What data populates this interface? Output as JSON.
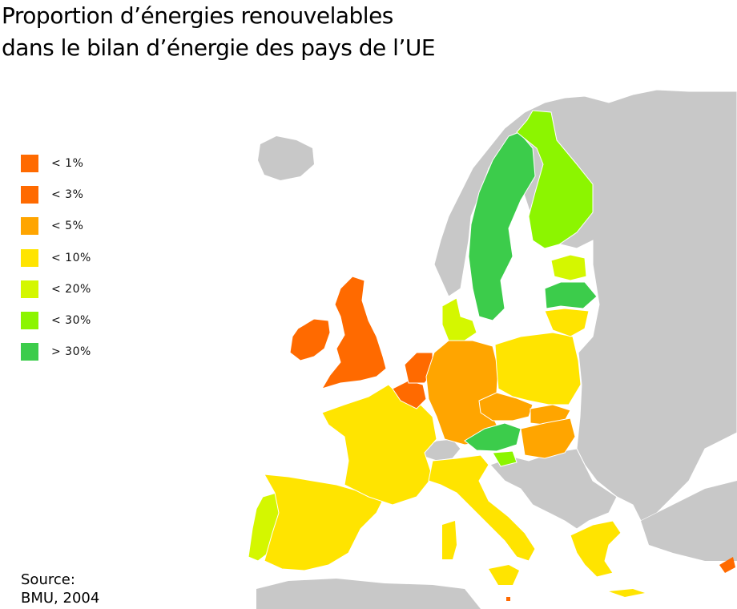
{
  "title": {
    "line1": "Proportion d’énergies renouvelables",
    "line2": "dans le bilan d’énergie des pays de l’UE"
  },
  "legend": [
    {
      "label": "< 1%",
      "color": "#ff6a00"
    },
    {
      "label": "< 3%",
      "color": "#ff6a00"
    },
    {
      "label": "< 5%",
      "color": "#ffa500"
    },
    {
      "label": "< 10%",
      "color": "#ffe400"
    },
    {
      "label": "< 20%",
      "color": "#d4f700"
    },
    {
      "label": "< 30%",
      "color": "#8cf500"
    },
    {
      "label": "> 30%",
      "color": "#3ccc4b"
    }
  ],
  "source": {
    "line1": "Source:",
    "line2": "BMU, 2004"
  },
  "colors": {
    "non_eu": "#c8c8c8",
    "water": "#ffffff",
    "border": "#ffffff"
  }
}
